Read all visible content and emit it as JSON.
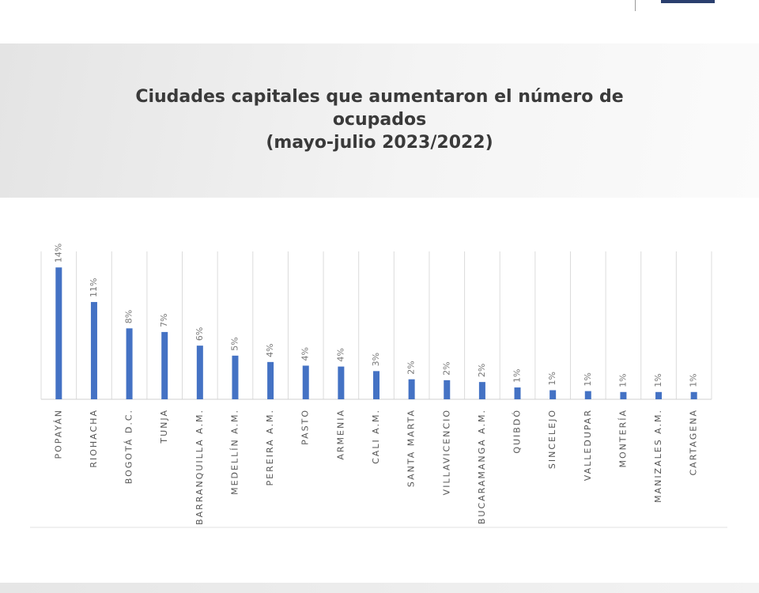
{
  "chart_data": {
    "type": "bar",
    "title": "Ciudades capitales que aumentaron el número de ocupados",
    "subtitle": "(mayo-julio 2023/2022)",
    "categories": [
      "POPAYÁN",
      "RIOHACHA",
      "BOGOTÁ D.C.",
      "TUNJA",
      "BARRANQUILLA A.M.",
      "MEDELLÍN A.M.",
      "PEREIRA A.M.",
      "PASTO",
      "ARMENIA",
      "CALI A.M.",
      "SANTA MARTA",
      "VILLAVICENCIO",
      "BUCARAMANGA A.M.",
      "QUIBDÓ",
      "SINCELEJO",
      "VALLEDUPAR",
      "MONTERÍA",
      "MANIZALES A.M.",
      "CARTAGENA"
    ],
    "values": [
      14.5,
      10.7,
      7.8,
      7.4,
      5.9,
      4.8,
      4.1,
      3.7,
      3.6,
      3.1,
      2.2,
      2.1,
      1.9,
      1.3,
      1.0,
      0.9,
      0.8,
      0.8,
      0.8
    ],
    "value_labels": [
      "14%",
      "11%",
      "8%",
      "7%",
      "6%",
      "5%",
      "4%",
      "4%",
      "4%",
      "3%",
      "2%",
      "2%",
      "2%",
      "1%",
      "1%",
      "1%",
      "1%",
      "1%",
      "1%"
    ],
    "color": "#4472c4"
  }
}
